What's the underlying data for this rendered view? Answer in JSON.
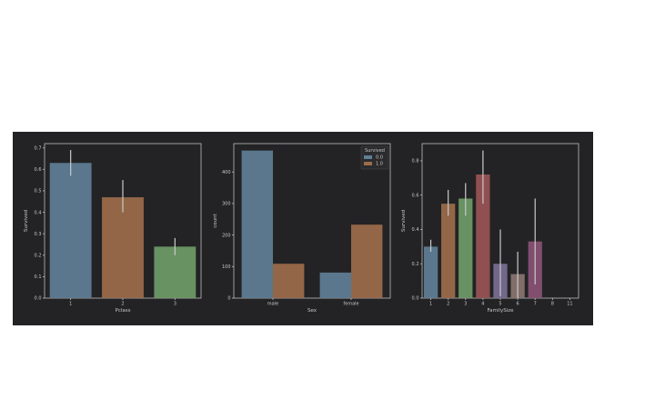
{
  "chart_data": [
    {
      "type": "bar",
      "categories": [
        "1",
        "2",
        "3"
      ],
      "values": [
        0.63,
        0.47,
        0.24
      ],
      "errors": [
        [
          0.57,
          0.69
        ],
        [
          0.4,
          0.55
        ],
        [
          0.2,
          0.28
        ]
      ],
      "colors": [
        "#5f7f96",
        "#9c6d4a",
        "#6f9c67"
      ],
      "xlabel": "Pclass",
      "ylabel": "Survived",
      "ylim": [
        0,
        0.72
      ],
      "yticks": [
        "0.0",
        "0.1",
        "0.2",
        "0.3",
        "0.4",
        "0.5",
        "0.6",
        "0.7"
      ],
      "grid": false
    },
    {
      "type": "bar",
      "categories": [
        "male",
        "female"
      ],
      "series": [
        {
          "name": "0.0",
          "color": "#5f7f96",
          "values": [
            468,
            81
          ]
        },
        {
          "name": "1.0",
          "color": "#9c6d4a",
          "values": [
            109,
            233
          ]
        }
      ],
      "legend_title": "Survived",
      "legend_position": "top-right",
      "xlabel": "Sex",
      "ylabel": "count",
      "ylim": [
        0,
        490
      ],
      "yticks": [
        "0",
        "100",
        "200",
        "300",
        "400"
      ],
      "grid": false
    },
    {
      "type": "bar",
      "categories": [
        "1",
        "2",
        "3",
        "4",
        "5",
        "6",
        "7",
        "8",
        "11"
      ],
      "values": [
        0.3,
        0.55,
        0.58,
        0.72,
        0.2,
        0.14,
        0.33,
        0,
        0
      ],
      "errors": [
        [
          0.27,
          0.34
        ],
        [
          0.48,
          0.63
        ],
        [
          0.48,
          0.67
        ],
        [
          0.55,
          0.86
        ],
        [
          0.01,
          0.4
        ],
        [
          0.0,
          0.27
        ],
        [
          0.08,
          0.58
        ],
        null,
        null
      ],
      "colors": [
        "#5f7f96",
        "#9c6d4a",
        "#6f9c67",
        "#9a5454",
        "#7a6f93",
        "#8a7570",
        "#8a5275",
        "#8a8a8a",
        "#b0ae80"
      ],
      "xlabel": "FamilySize",
      "ylabel": "Survived",
      "ylim": [
        0,
        0.9
      ],
      "yticks": [
        "0.0",
        "0.2",
        "0.4",
        "0.6",
        "0.8"
      ],
      "grid": false
    }
  ]
}
